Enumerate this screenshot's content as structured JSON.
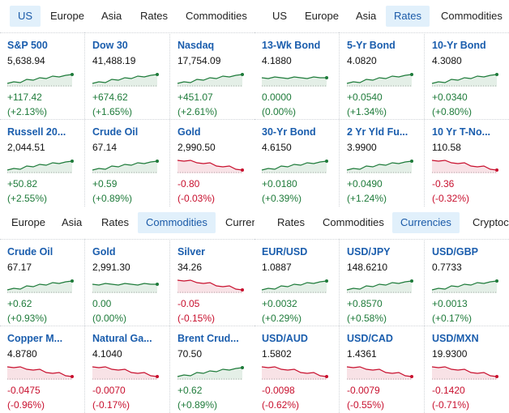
{
  "colors": {
    "up": "#1e7b3a",
    "down": "#c8102e",
    "flat": "#1e7b3a",
    "link": "#1a5dad",
    "activeTab": "#e1f0fb"
  },
  "panels": [
    {
      "tabs": [
        {
          "label": "US",
          "active": true
        },
        {
          "label": "Europe",
          "active": false
        },
        {
          "label": "Asia",
          "active": false
        },
        {
          "label": "Rates",
          "active": false
        },
        {
          "label": "Commodities",
          "active": false
        }
      ],
      "tiles": [
        {
          "name": "S&P 500",
          "price": "5,638.94",
          "change": "+117.42",
          "pct": "(+2.13%)",
          "trend": "up"
        },
        {
          "name": "Dow 30",
          "price": "41,488.19",
          "change": "+674.62",
          "pct": "(+1.65%)",
          "trend": "up"
        },
        {
          "name": "Nasdaq",
          "price": "17,754.09",
          "change": "+451.07",
          "pct": "(+2.61%)",
          "trend": "up"
        },
        {
          "name": "Russell 20...",
          "price": "2,044.51",
          "change": "+50.82",
          "pct": "(+2.55%)",
          "trend": "up"
        },
        {
          "name": "Crude Oil",
          "price": "67.14",
          "change": "+0.59",
          "pct": "(+0.89%)",
          "trend": "up"
        },
        {
          "name": "Gold",
          "price": "2,990.50",
          "change": "-0.80",
          "pct": "(-0.03%)",
          "trend": "down"
        }
      ]
    },
    {
      "tabs": [
        {
          "label": "US",
          "active": false
        },
        {
          "label": "Europe",
          "active": false
        },
        {
          "label": "Asia",
          "active": false
        },
        {
          "label": "Rates",
          "active": true
        },
        {
          "label": "Commodities",
          "active": false
        }
      ],
      "tiles": [
        {
          "name": "13-Wk Bond",
          "price": "4.1880",
          "change": "0.0000",
          "pct": "(0.00%)",
          "trend": "flat"
        },
        {
          "name": "5-Yr Bond",
          "price": "4.0820",
          "change": "+0.0540",
          "pct": "(+1.34%)",
          "trend": "up"
        },
        {
          "name": "10-Yr Bond",
          "price": "4.3080",
          "change": "+0.0340",
          "pct": "(+0.80%)",
          "trend": "up"
        },
        {
          "name": "30-Yr Bond",
          "price": "4.6150",
          "change": "+0.0180",
          "pct": "(+0.39%)",
          "trend": "up"
        },
        {
          "name": "2 Yr Yld Fu...",
          "price": "3.9900",
          "change": "+0.0490",
          "pct": "(+1.24%)",
          "trend": "up"
        },
        {
          "name": "10 Yr T-No...",
          "price": "110.58",
          "change": "-0.36",
          "pct": "(-0.32%)",
          "trend": "down"
        }
      ]
    },
    {
      "tabs": [
        {
          "label": "Europe",
          "active": false
        },
        {
          "label": "Asia",
          "active": false
        },
        {
          "label": "Rates",
          "active": false
        },
        {
          "label": "Commodities",
          "active": true
        },
        {
          "label": "Curren",
          "active": false
        }
      ],
      "tiles": [
        {
          "name": "Crude Oil",
          "price": "67.17",
          "change": "+0.62",
          "pct": "(+0.93%)",
          "trend": "up"
        },
        {
          "name": "Gold",
          "price": "2,991.30",
          "change": "0.00",
          "pct": "(0.00%)",
          "trend": "flat"
        },
        {
          "name": "Silver",
          "price": "34.26",
          "change": "-0.05",
          "pct": "(-0.15%)",
          "trend": "down"
        },
        {
          "name": "Copper M...",
          "price": "4.8780",
          "change": "-0.0475",
          "pct": "(-0.96%)",
          "trend": "down"
        },
        {
          "name": "Natural Ga...",
          "price": "4.1040",
          "change": "-0.0070",
          "pct": "(-0.17%)",
          "trend": "down"
        },
        {
          "name": "Brent Crud...",
          "price": "70.50",
          "change": "+0.62",
          "pct": "(+0.89%)",
          "trend": "up"
        }
      ]
    },
    {
      "tabs": [
        {
          "label": "Rates",
          "active": false
        },
        {
          "label": "Commodities",
          "active": false
        },
        {
          "label": "Currencies",
          "active": true
        },
        {
          "label": "Cryptocu",
          "active": false
        }
      ],
      "tiles": [
        {
          "name": "EUR/USD",
          "price": "1.0887",
          "change": "+0.0032",
          "pct": "(+0.29%)",
          "trend": "up"
        },
        {
          "name": "USD/JPY",
          "price": "148.6210",
          "change": "+0.8570",
          "pct": "(+0.58%)",
          "trend": "up"
        },
        {
          "name": "USD/GBP",
          "price": "0.7733",
          "change": "+0.0013",
          "pct": "(+0.17%)",
          "trend": "up"
        },
        {
          "name": "USD/AUD",
          "price": "1.5802",
          "change": "-0.0098",
          "pct": "(-0.62%)",
          "trend": "down"
        },
        {
          "name": "USD/CAD",
          "price": "1.4361",
          "change": "-0.0079",
          "pct": "(-0.55%)",
          "trend": "down"
        },
        {
          "name": "USD/MXN",
          "price": "19.9300",
          "change": "-0.1420",
          "pct": "(-0.71%)",
          "trend": "down"
        }
      ]
    }
  ]
}
